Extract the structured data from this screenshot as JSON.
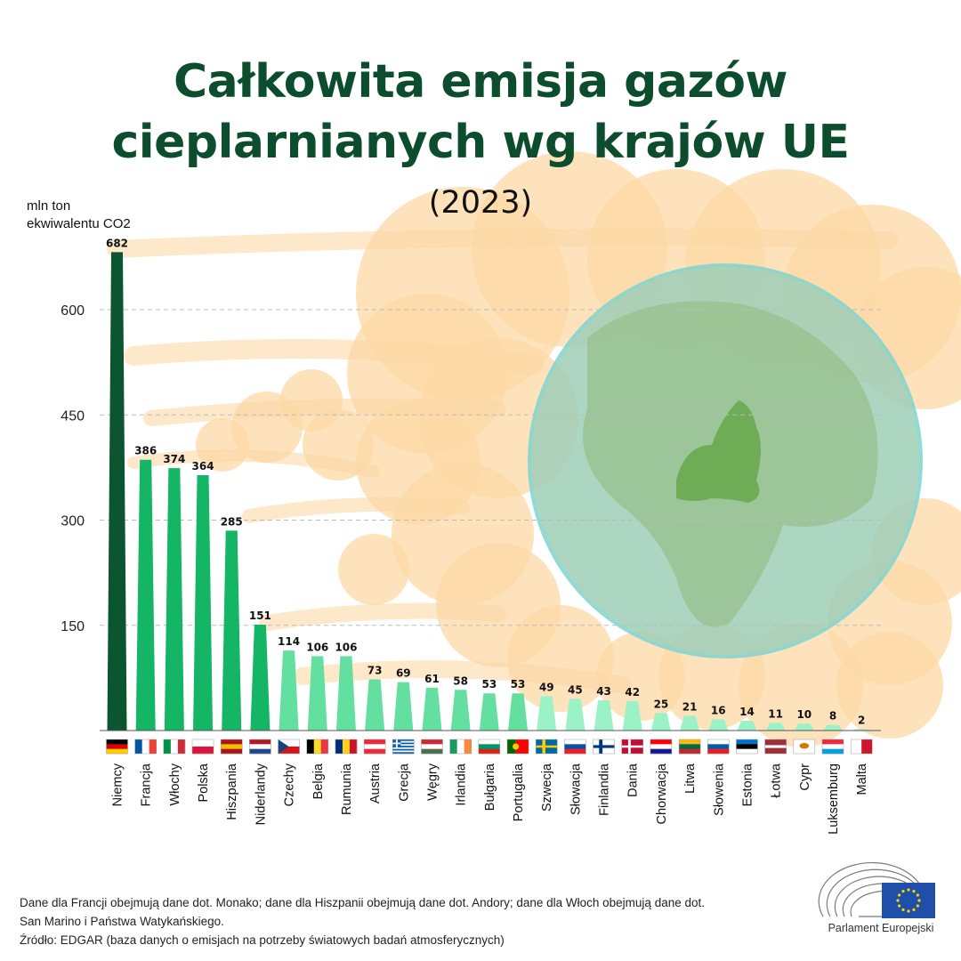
{
  "title_line1": "Całkowita emisja gazów",
  "title_line2": "cieplarnianych wg krajów UE",
  "subtitle": "(2023)",
  "colors": {
    "title": "#0b4d2c",
    "bar_top": "#0b5530",
    "bar_high": "#14b565",
    "bar_mid": "#63e09f",
    "bar_low": "#9bf2c6",
    "smoke": "#fcd8a6",
    "globe": "#9ecfb8"
  },
  "chart_data": {
    "type": "bar",
    "ylabel_lines": [
      "mln ton",
      "ekwiwalentu CO2"
    ],
    "yticks": [
      150,
      300,
      450,
      600
    ],
    "ylim": [
      0,
      700
    ],
    "grid": true,
    "categories": [
      "Niemcy",
      "Francja",
      "Włochy",
      "Polska",
      "Hiszpania",
      "Niderlandy",
      "Czechy",
      "Belgia",
      "Rumunia",
      "Austria",
      "Grecja",
      "Węgry",
      "Irlandia",
      "Bułgaria",
      "Portugalia",
      "Szwecja",
      "Słowacja",
      "Finlandia",
      "Dania",
      "Chorwacja",
      "Litwa",
      "Słowenia",
      "Estonia",
      "Łotwa",
      "Cypr",
      "Luksemburg",
      "Malta"
    ],
    "values": [
      682,
      386,
      374,
      364,
      285,
      151,
      114,
      106,
      106,
      73,
      69,
      61,
      58,
      53,
      53,
      49,
      45,
      43,
      42,
      25,
      21,
      16,
      14,
      11,
      10,
      8,
      2
    ]
  },
  "footnote_line1": "Dane dla Francji obejmują dane dot. Monako; dane dla Hiszpanii obejmują dane dot. Andory; dane dla Włoch obejmują dane dot.",
  "footnote_line2": "San Marino i Państwa Watykańskiego.",
  "footnote_line3": "Źródło: EDGAR (baza danych o emisjach na potrzeby światowych badań atmosferycznych)",
  "logo_text": "Parlament Europejski"
}
